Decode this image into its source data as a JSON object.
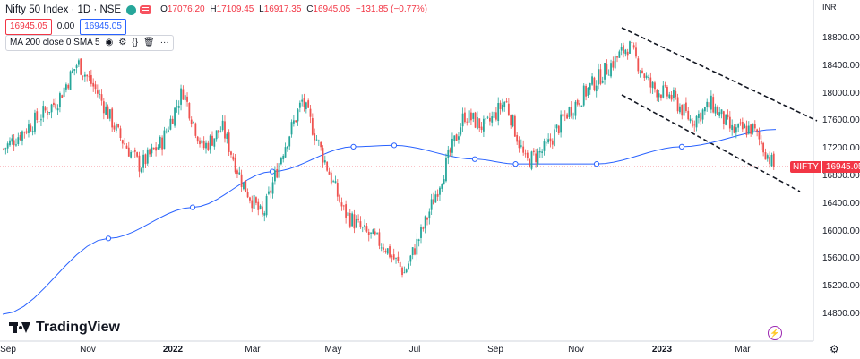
{
  "header": {
    "title": "Nifty 50 Index · 1D · NSE",
    "ohlc": [
      {
        "k": "O",
        "v": "17076.20"
      },
      {
        "k": "H",
        "v": "17109.45"
      },
      {
        "k": "L",
        "v": "16917.35"
      },
      {
        "k": "C",
        "v": "16945.05"
      },
      {
        "k": "",
        "v": "−131.85 (−0.77%)"
      }
    ],
    "bid": "16945.05",
    "spread": "0.00",
    "ask": "16945.05",
    "ma_label": "MA 200 close 0 SMA 5"
  },
  "brand": {
    "name": "TradingView"
  },
  "axis": {
    "currency": "INR",
    "y_ticks": [
      "18800.00",
      "18400.00",
      "18000.00",
      "17600.00",
      "17200.00",
      "16800.00",
      "16400.00",
      "16000.00",
      "15600.00",
      "15200.00",
      "14800.00"
    ],
    "x_ticks": [
      "Sep",
      "Nov",
      "2022",
      "Mar",
      "May",
      "Jul",
      "Sep",
      "Nov",
      "2023",
      "Mar"
    ],
    "bold_x_ticks": [
      "2022",
      "2023"
    ]
  },
  "last_price": {
    "symbol": "NIFTY",
    "value": "16945.05"
  },
  "colors": {
    "up": "#26a69a",
    "down": "#ef5350",
    "ma": "#2962ff",
    "trend": "#131722"
  },
  "chart_data": {
    "type": "candlestick",
    "title": "Nifty 50 Index · 1D · NSE",
    "ylim": [
      14550,
      19150
    ],
    "x_range": [
      "2021-09",
      "2023-03"
    ],
    "series": [
      {
        "name": "NIFTY",
        "type": "ohlc",
        "close_path": [
          [
            "2021-09",
            17200
          ],
          [
            "2021-10",
            17900
          ],
          [
            "2021-10",
            18450
          ],
          [
            "2021-11",
            18000
          ],
          [
            "2021-11",
            17400
          ],
          [
            "2021-12",
            16950
          ],
          [
            "2021-12",
            17300
          ],
          [
            "2022-01",
            18050
          ],
          [
            "2022-01",
            17200
          ],
          [
            "2022-02",
            17500
          ],
          [
            "2022-02",
            16700
          ],
          [
            "2022-03",
            16200
          ],
          [
            "2022-03",
            17150
          ],
          [
            "2022-04",
            17900
          ],
          [
            "2022-04",
            17100
          ],
          [
            "2022-05",
            16300
          ],
          [
            "2022-05",
            16000
          ],
          [
            "2022-06",
            15800
          ],
          [
            "2022-06",
            15400
          ],
          [
            "2022-07",
            16100
          ],
          [
            "2022-07",
            16900
          ],
          [
            "2022-08",
            17700
          ],
          [
            "2022-08",
            17500
          ],
          [
            "2022-09",
            17900
          ],
          [
            "2022-09",
            17000
          ],
          [
            "2022-10",
            17200
          ],
          [
            "2022-10",
            17700
          ],
          [
            "2022-11",
            18200
          ],
          [
            "2022-12",
            18700
          ],
          [
            "2022-12",
            18100
          ],
          [
            "2023-01",
            17950
          ],
          [
            "2023-01",
            17600
          ],
          [
            "2023-02",
            17850
          ],
          [
            "2023-02",
            17450
          ],
          [
            "2023-03",
            17500
          ],
          [
            "2023-03",
            16945.05
          ]
        ],
        "last": {
          "open": 17076.2,
          "high": 17109.45,
          "low": 16917.35,
          "close": 16945.05,
          "change": -131.85,
          "change_pct": -0.77
        }
      },
      {
        "name": "MA 200",
        "type": "line",
        "points": [
          [
            "2021-09",
            14800
          ],
          [
            "2021-11",
            15900
          ],
          [
            "2022-01",
            16350
          ],
          [
            "2022-03",
            16870
          ],
          [
            "2022-05",
            17230
          ],
          [
            "2022-06",
            17250
          ],
          [
            "2022-08",
            17050
          ],
          [
            "2022-09",
            16980
          ],
          [
            "2022-11",
            16980
          ],
          [
            "2023-01",
            17230
          ],
          [
            "2023-03",
            17480
          ]
        ]
      }
    ]
  }
}
